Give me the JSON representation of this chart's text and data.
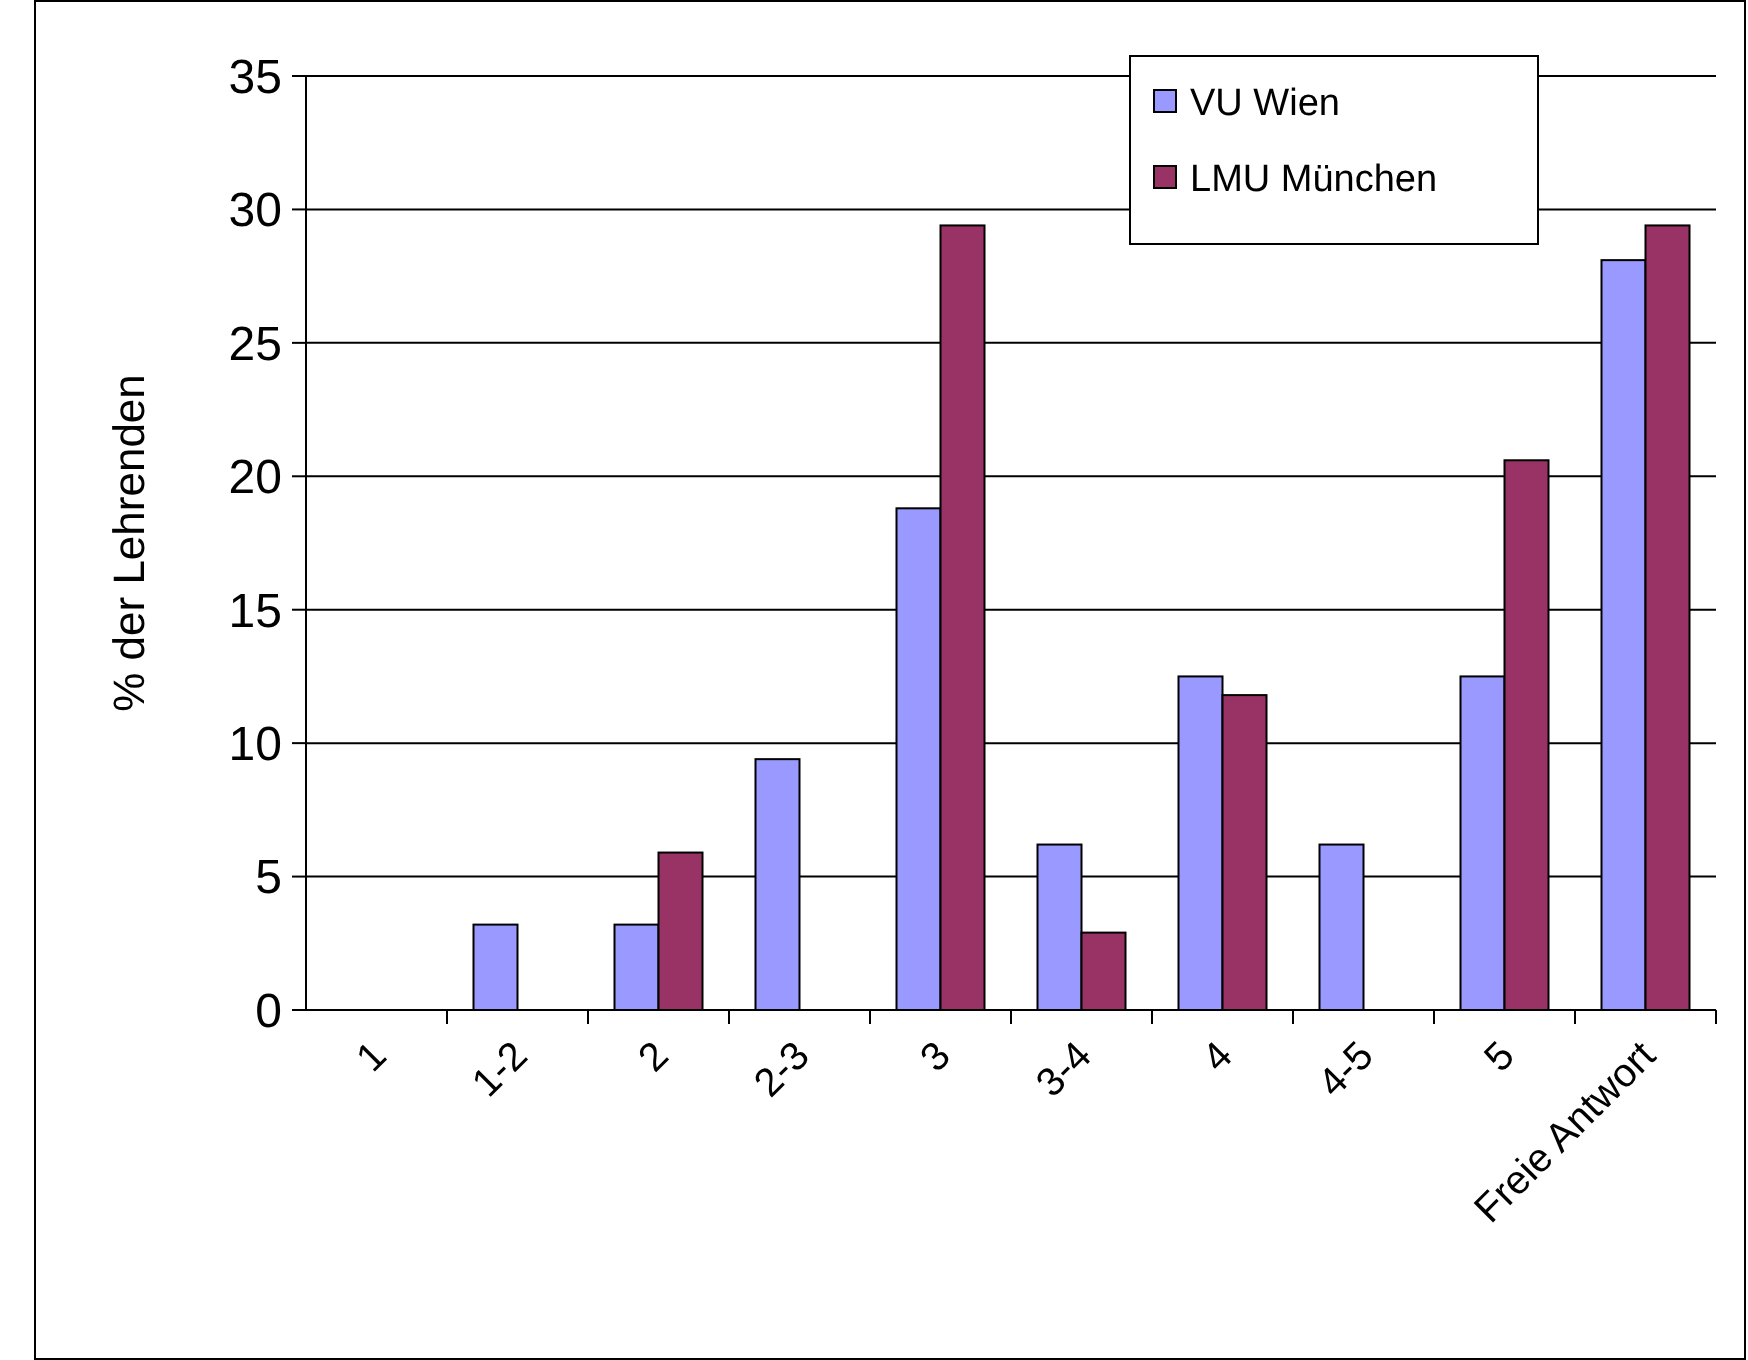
{
  "chart_data": {
    "type": "bar",
    "ylabel": "% der Lehrenden",
    "categories": [
      "1",
      "1-2",
      "2",
      "2-3",
      "3",
      "3-4",
      "4",
      "4-5",
      "5",
      "Freie Antwort"
    ],
    "series": [
      {
        "name": "VU Wien",
        "color": "#9999ff",
        "values": [
          0,
          3.2,
          3.2,
          9.4,
          18.8,
          6.2,
          12.5,
          6.2,
          12.5,
          28.1
        ]
      },
      {
        "name": "LMU München",
        "color": "#993366",
        "values": [
          0,
          0,
          5.9,
          0,
          29.4,
          2.9,
          11.8,
          0,
          20.6,
          29.4
        ]
      }
    ],
    "ylim": [
      0,
      35
    ],
    "yticks": [
      0,
      5,
      10,
      15,
      20,
      25,
      30,
      35
    ],
    "grid": "y",
    "legend": "top right"
  }
}
